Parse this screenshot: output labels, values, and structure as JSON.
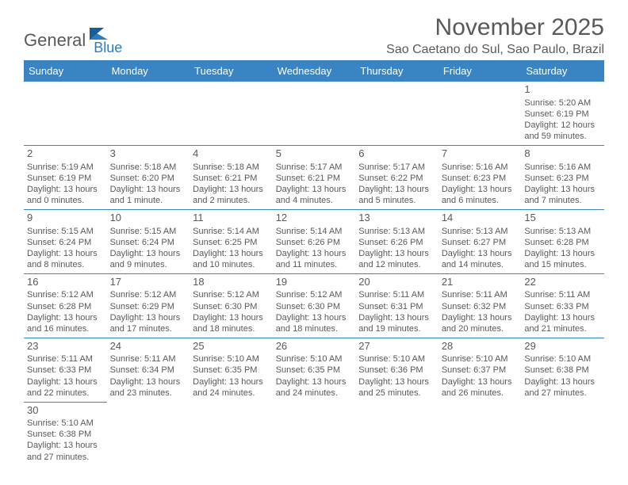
{
  "logo": {
    "text1": "General",
    "text2": "Blue"
  },
  "title": "November 2025",
  "location": "Sao Caetano do Sul, Sao Paulo, Brazil",
  "colors": {
    "header_bg": "#3a84c4",
    "text": "#58595b",
    "rule": "#3a84c4"
  },
  "dayNames": [
    "Sunday",
    "Monday",
    "Tuesday",
    "Wednesday",
    "Thursday",
    "Friday",
    "Saturday"
  ],
  "weeks": [
    [
      null,
      null,
      null,
      null,
      null,
      null,
      {
        "n": "1",
        "sr": "Sunrise: 5:20 AM",
        "ss": "Sunset: 6:19 PM",
        "d1": "Daylight: 12 hours",
        "d2": "and 59 minutes."
      }
    ],
    [
      {
        "n": "2",
        "sr": "Sunrise: 5:19 AM",
        "ss": "Sunset: 6:19 PM",
        "d1": "Daylight: 13 hours",
        "d2": "and 0 minutes."
      },
      {
        "n": "3",
        "sr": "Sunrise: 5:18 AM",
        "ss": "Sunset: 6:20 PM",
        "d1": "Daylight: 13 hours",
        "d2": "and 1 minute."
      },
      {
        "n": "4",
        "sr": "Sunrise: 5:18 AM",
        "ss": "Sunset: 6:21 PM",
        "d1": "Daylight: 13 hours",
        "d2": "and 2 minutes."
      },
      {
        "n": "5",
        "sr": "Sunrise: 5:17 AM",
        "ss": "Sunset: 6:21 PM",
        "d1": "Daylight: 13 hours",
        "d2": "and 4 minutes."
      },
      {
        "n": "6",
        "sr": "Sunrise: 5:17 AM",
        "ss": "Sunset: 6:22 PM",
        "d1": "Daylight: 13 hours",
        "d2": "and 5 minutes."
      },
      {
        "n": "7",
        "sr": "Sunrise: 5:16 AM",
        "ss": "Sunset: 6:23 PM",
        "d1": "Daylight: 13 hours",
        "d2": "and 6 minutes."
      },
      {
        "n": "8",
        "sr": "Sunrise: 5:16 AM",
        "ss": "Sunset: 6:23 PM",
        "d1": "Daylight: 13 hours",
        "d2": "and 7 minutes."
      }
    ],
    [
      {
        "n": "9",
        "sr": "Sunrise: 5:15 AM",
        "ss": "Sunset: 6:24 PM",
        "d1": "Daylight: 13 hours",
        "d2": "and 8 minutes."
      },
      {
        "n": "10",
        "sr": "Sunrise: 5:15 AM",
        "ss": "Sunset: 6:24 PM",
        "d1": "Daylight: 13 hours",
        "d2": "and 9 minutes."
      },
      {
        "n": "11",
        "sr": "Sunrise: 5:14 AM",
        "ss": "Sunset: 6:25 PM",
        "d1": "Daylight: 13 hours",
        "d2": "and 10 minutes."
      },
      {
        "n": "12",
        "sr": "Sunrise: 5:14 AM",
        "ss": "Sunset: 6:26 PM",
        "d1": "Daylight: 13 hours",
        "d2": "and 11 minutes."
      },
      {
        "n": "13",
        "sr": "Sunrise: 5:13 AM",
        "ss": "Sunset: 6:26 PM",
        "d1": "Daylight: 13 hours",
        "d2": "and 12 minutes."
      },
      {
        "n": "14",
        "sr": "Sunrise: 5:13 AM",
        "ss": "Sunset: 6:27 PM",
        "d1": "Daylight: 13 hours",
        "d2": "and 14 minutes."
      },
      {
        "n": "15",
        "sr": "Sunrise: 5:13 AM",
        "ss": "Sunset: 6:28 PM",
        "d1": "Daylight: 13 hours",
        "d2": "and 15 minutes."
      }
    ],
    [
      {
        "n": "16",
        "sr": "Sunrise: 5:12 AM",
        "ss": "Sunset: 6:28 PM",
        "d1": "Daylight: 13 hours",
        "d2": "and 16 minutes."
      },
      {
        "n": "17",
        "sr": "Sunrise: 5:12 AM",
        "ss": "Sunset: 6:29 PM",
        "d1": "Daylight: 13 hours",
        "d2": "and 17 minutes."
      },
      {
        "n": "18",
        "sr": "Sunrise: 5:12 AM",
        "ss": "Sunset: 6:30 PM",
        "d1": "Daylight: 13 hours",
        "d2": "and 18 minutes."
      },
      {
        "n": "19",
        "sr": "Sunrise: 5:12 AM",
        "ss": "Sunset: 6:30 PM",
        "d1": "Daylight: 13 hours",
        "d2": "and 18 minutes."
      },
      {
        "n": "20",
        "sr": "Sunrise: 5:11 AM",
        "ss": "Sunset: 6:31 PM",
        "d1": "Daylight: 13 hours",
        "d2": "and 19 minutes."
      },
      {
        "n": "21",
        "sr": "Sunrise: 5:11 AM",
        "ss": "Sunset: 6:32 PM",
        "d1": "Daylight: 13 hours",
        "d2": "and 20 minutes."
      },
      {
        "n": "22",
        "sr": "Sunrise: 5:11 AM",
        "ss": "Sunset: 6:33 PM",
        "d1": "Daylight: 13 hours",
        "d2": "and 21 minutes."
      }
    ],
    [
      {
        "n": "23",
        "sr": "Sunrise: 5:11 AM",
        "ss": "Sunset: 6:33 PM",
        "d1": "Daylight: 13 hours",
        "d2": "and 22 minutes."
      },
      {
        "n": "24",
        "sr": "Sunrise: 5:11 AM",
        "ss": "Sunset: 6:34 PM",
        "d1": "Daylight: 13 hours",
        "d2": "and 23 minutes."
      },
      {
        "n": "25",
        "sr": "Sunrise: 5:10 AM",
        "ss": "Sunset: 6:35 PM",
        "d1": "Daylight: 13 hours",
        "d2": "and 24 minutes."
      },
      {
        "n": "26",
        "sr": "Sunrise: 5:10 AM",
        "ss": "Sunset: 6:35 PM",
        "d1": "Daylight: 13 hours",
        "d2": "and 24 minutes."
      },
      {
        "n": "27",
        "sr": "Sunrise: 5:10 AM",
        "ss": "Sunset: 6:36 PM",
        "d1": "Daylight: 13 hours",
        "d2": "and 25 minutes."
      },
      {
        "n": "28",
        "sr": "Sunrise: 5:10 AM",
        "ss": "Sunset: 6:37 PM",
        "d1": "Daylight: 13 hours",
        "d2": "and 26 minutes."
      },
      {
        "n": "29",
        "sr": "Sunrise: 5:10 AM",
        "ss": "Sunset: 6:38 PM",
        "d1": "Daylight: 13 hours",
        "d2": "and 27 minutes."
      }
    ],
    [
      {
        "n": "30",
        "sr": "Sunrise: 5:10 AM",
        "ss": "Sunset: 6:38 PM",
        "d1": "Daylight: 13 hours",
        "d2": "and 27 minutes."
      },
      null,
      null,
      null,
      null,
      null,
      null
    ]
  ]
}
